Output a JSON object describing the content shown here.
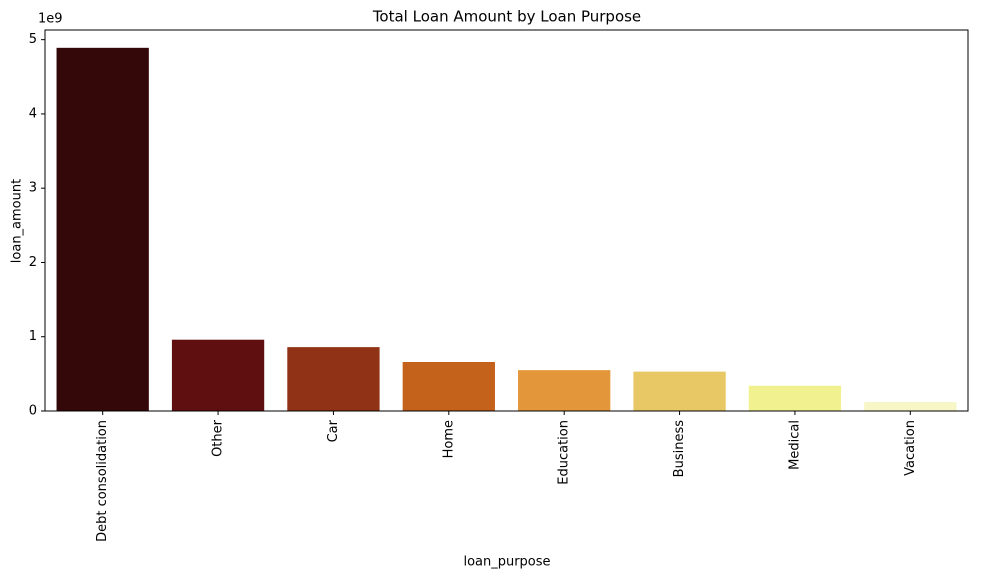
{
  "chart_data": {
    "type": "bar",
    "title": "Total Loan Amount by Loan Purpose",
    "x_label": "loan_purpose",
    "y_label": "loan_amount",
    "y_offset_label": "1e9",
    "categories": [
      "Debt consolidation",
      "Other",
      "Car",
      "Home",
      "Education",
      "Business",
      "Medical",
      "Vacation"
    ],
    "values": [
      4.89,
      0.96,
      0.86,
      0.66,
      0.55,
      0.53,
      0.34,
      0.12
    ],
    "colors": [
      "#340808",
      "#5f0f10",
      "#8f3215",
      "#c4611a",
      "#e3963a",
      "#e8c864",
      "#f1f190",
      "#f6f6c7"
    ],
    "ylim": [
      0,
      5.13
    ],
    "yticks": [
      0,
      1,
      2,
      3,
      4,
      5
    ],
    "grid": false
  }
}
